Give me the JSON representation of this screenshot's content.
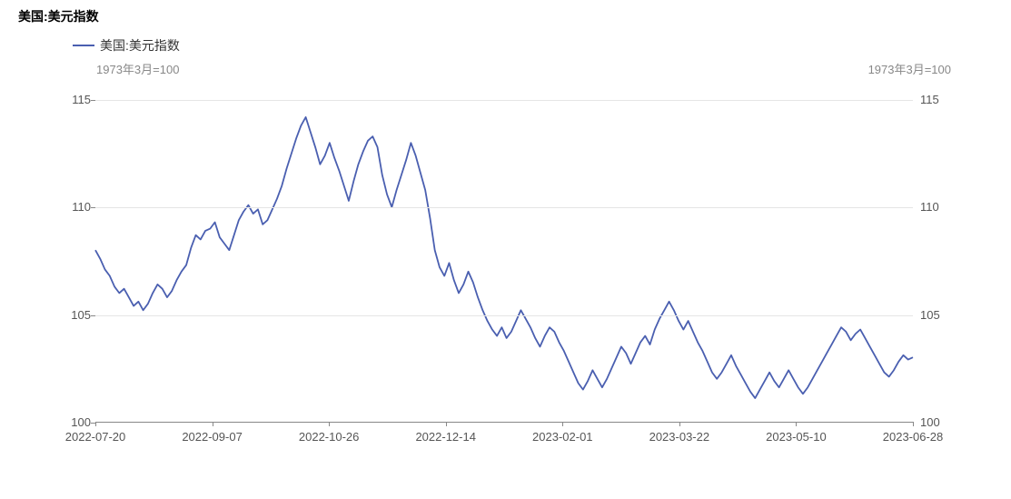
{
  "title": "美国:美元指数",
  "legend": {
    "label": "美国:美元指数",
    "color": "#4a5fb0"
  },
  "axis_subtitle_left": "1973年3月=100",
  "axis_subtitle_right": "1973年3月=100",
  "chart": {
    "type": "line",
    "line_color": "#4a5fb0",
    "line_width": 1.8,
    "background_color": "#ffffff",
    "grid_color": "#e5e5e5",
    "axis_color": "#888888",
    "text_color": "#555555",
    "ylim": [
      100,
      115
    ],
    "ytick_step": 5,
    "yticks": [
      100,
      105,
      110,
      115
    ],
    "xticks": [
      "2022-07-20",
      "2022-09-07",
      "2022-10-26",
      "2022-12-14",
      "2023-02-01",
      "2023-03-22",
      "2023-05-10",
      "2023-06-28"
    ],
    "title_fontsize": 14,
    "label_fontsize": 13,
    "series": [
      {
        "name": "美国:美元指数",
        "values": [
          108.0,
          107.6,
          107.1,
          106.8,
          106.3,
          106.0,
          106.2,
          105.8,
          105.4,
          105.6,
          105.2,
          105.5,
          106.0,
          106.4,
          106.2,
          105.8,
          106.1,
          106.6,
          107.0,
          107.3,
          108.1,
          108.7,
          108.5,
          108.9,
          109.0,
          109.3,
          108.6,
          108.3,
          108.0,
          108.7,
          109.4,
          109.8,
          110.1,
          109.7,
          109.9,
          109.2,
          109.4,
          109.9,
          110.4,
          111.0,
          111.8,
          112.5,
          113.2,
          113.8,
          114.2,
          113.5,
          112.8,
          112.0,
          112.4,
          113.0,
          112.3,
          111.7,
          111.0,
          110.3,
          111.2,
          112.0,
          112.6,
          113.1,
          113.3,
          112.8,
          111.5,
          110.6,
          110.0,
          110.8,
          111.5,
          112.2,
          113.0,
          112.4,
          111.6,
          110.8,
          109.5,
          108.0,
          107.2,
          106.8,
          107.4,
          106.6,
          106.0,
          106.4,
          107.0,
          106.5,
          105.8,
          105.2,
          104.7,
          104.3,
          104.0,
          104.4,
          103.9,
          104.2,
          104.7,
          105.2,
          104.8,
          104.4,
          103.9,
          103.5,
          104.0,
          104.4,
          104.2,
          103.7,
          103.3,
          102.8,
          102.3,
          101.8,
          101.5,
          101.9,
          102.4,
          102.0,
          101.6,
          102.0,
          102.5,
          103.0,
          103.5,
          103.2,
          102.7,
          103.2,
          103.7,
          104.0,
          103.6,
          104.3,
          104.8,
          105.2,
          105.6,
          105.2,
          104.7,
          104.3,
          104.7,
          104.2,
          103.7,
          103.3,
          102.8,
          102.3,
          102.0,
          102.3,
          102.7,
          103.1,
          102.6,
          102.2,
          101.8,
          101.4,
          101.1,
          101.5,
          101.9,
          102.3,
          101.9,
          101.6,
          102.0,
          102.4,
          102.0,
          101.6,
          101.3,
          101.6,
          102.0,
          102.4,
          102.8,
          103.2,
          103.6,
          104.0,
          104.4,
          104.2,
          103.8,
          104.1,
          104.3,
          103.9,
          103.5,
          103.1,
          102.7,
          102.3,
          102.1,
          102.4,
          102.8,
          103.1,
          102.9,
          103.0
        ]
      }
    ]
  }
}
